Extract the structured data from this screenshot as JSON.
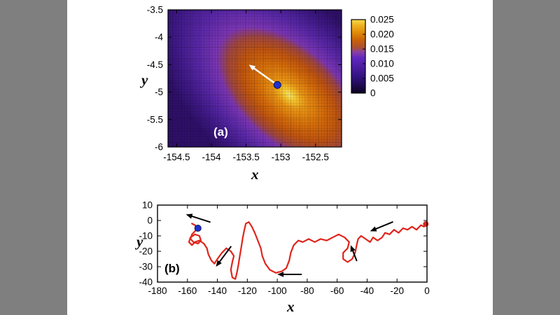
{
  "page": {
    "background": "#7f7f7f",
    "paper": "#ffffff"
  },
  "chart_data": [
    {
      "id": "panel-a",
      "type": "heatmap",
      "panel_label": "(a)",
      "xlabel": "x",
      "ylabel": "y",
      "xlim": [
        -154.625,
        -152.125
      ],
      "ylim": [
        -6,
        -3.5
      ],
      "xticks": {
        "values": [
          -154.5,
          -154,
          -153.5,
          -153,
          -152.5
        ],
        "labels": [
          "-154.5",
          "-154",
          "-153.5",
          "-153",
          "-152.5"
        ]
      },
      "yticks": {
        "values": [
          -3.5,
          -4,
          -4.5,
          -5,
          -5.5,
          -6
        ],
        "labels": [
          "-3.5",
          "-4",
          "-4.5",
          "-5",
          "-5.5",
          "-6"
        ]
      },
      "colorbar": {
        "min": 0,
        "max": 0.025,
        "tick_labels": [
          "0.025",
          "0.020",
          "0.015",
          "0.010",
          "0.005",
          "0"
        ],
        "palette_stops": [
          {
            "offset": 0,
            "color": "#0b0220"
          },
          {
            "offset": 0.1,
            "color": "#1e0a4e"
          },
          {
            "offset": 0.22,
            "color": "#32127f"
          },
          {
            "offset": 0.35,
            "color": "#4a1d9e"
          },
          {
            "offset": 0.48,
            "color": "#6128c0"
          },
          {
            "offset": 0.56,
            "color": "#8a41a0"
          },
          {
            "offset": 0.62,
            "color": "#aa4f30"
          },
          {
            "offset": 0.72,
            "color": "#c86208"
          },
          {
            "offset": 0.82,
            "color": "#e08908"
          },
          {
            "offset": 0.92,
            "color": "#eeb11e"
          },
          {
            "offset": 1,
            "color": "#f7dc4e"
          }
        ]
      },
      "hotspot": {
        "x": -152.88,
        "y": -5.05,
        "tilt_deg": 42,
        "aspect": 0.55,
        "gradient_stops": [
          {
            "offset": 0,
            "color": "#fbe96f"
          },
          {
            "offset": 0.05,
            "color": "#f6c52e"
          },
          {
            "offset": 0.12,
            "color": "#ea9414"
          },
          {
            "offset": 0.25,
            "color": "#d56c0a"
          },
          {
            "offset": 0.36,
            "color": "#bf5410"
          },
          {
            "offset": 0.46,
            "color": "#a04640"
          },
          {
            "offset": 0.54,
            "color": "#7c36b4"
          },
          {
            "offset": 0.68,
            "color": "#5a28a8"
          },
          {
            "offset": 0.85,
            "color": "#3f1987"
          },
          {
            "offset": 1,
            "color": "#2e1068"
          }
        ]
      },
      "marker": {
        "x": -153.05,
        "y": -4.87,
        "color": "#1d2fd6"
      },
      "arrow": {
        "x1": -153.05,
        "y1": -4.87,
        "x2": -153.46,
        "y2": -4.5,
        "color": "#ffffff"
      }
    },
    {
      "id": "panel-b",
      "type": "line",
      "panel_label": "(b)",
      "xlabel": "x",
      "ylabel": "y",
      "xlim": [
        -180,
        0
      ],
      "ylim": [
        -40,
        10
      ],
      "xticks": {
        "values": [
          -180,
          -160,
          -140,
          -120,
          -100,
          -80,
          -60,
          -40,
          -20,
          0
        ],
        "labels": [
          "-180",
          "-160",
          "-140",
          "-120",
          "-100",
          "-80",
          "-60",
          "-40",
          "-20",
          "0"
        ]
      },
      "yticks": {
        "values": [
          10,
          0,
          -10,
          -20,
          -30,
          -40
        ],
        "labels": [
          "10",
          "0",
          "-10",
          "-20",
          "-30",
          "-40"
        ]
      },
      "series": [
        {
          "name": "trajectory",
          "color": "#e0251c",
          "points": [
            [
              0,
              -2
            ],
            [
              -2,
              -4
            ],
            [
              -4,
              -3
            ],
            [
              -7,
              -6
            ],
            [
              -10,
              -4
            ],
            [
              -13,
              -6
            ],
            [
              -16,
              -5
            ],
            [
              -19,
              -8
            ],
            [
              -22,
              -6
            ],
            [
              -25,
              -9
            ],
            [
              -28,
              -8
            ],
            [
              -30,
              -11
            ],
            [
              -33,
              -13
            ],
            [
              -36,
              -11
            ],
            [
              -38,
              -14
            ],
            [
              -41,
              -12
            ],
            [
              -44,
              -10
            ],
            [
              -46,
              -12
            ],
            [
              -47,
              -16
            ],
            [
              -48,
              -21
            ],
            [
              -50,
              -25
            ],
            [
              -53,
              -27
            ],
            [
              -56,
              -25
            ],
            [
              -56,
              -21
            ],
            [
              -53,
              -18
            ],
            [
              -52,
              -14
            ],
            [
              -55,
              -11
            ],
            [
              -59,
              -9
            ],
            [
              -63,
              -11
            ],
            [
              -67,
              -13
            ],
            [
              -71,
              -12
            ],
            [
              -75,
              -14
            ],
            [
              -79,
              -12
            ],
            [
              -83,
              -14
            ],
            [
              -86,
              -13
            ],
            [
              -89,
              -16
            ],
            [
              -91,
              -21
            ],
            [
              -92,
              -26
            ],
            [
              -94,
              -31
            ],
            [
              -97,
              -33
            ],
            [
              -101,
              -34
            ],
            [
              -105,
              -32
            ],
            [
              -108,
              -28
            ],
            [
              -110,
              -23
            ],
            [
              -111,
              -18
            ],
            [
              -113,
              -13
            ],
            [
              -115,
              -8
            ],
            [
              -117,
              -4
            ],
            [
              -119,
              -1
            ],
            [
              -121,
              -2
            ],
            [
              -122,
              -6
            ],
            [
              -123,
              -11
            ],
            [
              -124,
              -17
            ],
            [
              -125,
              -23
            ],
            [
              -126,
              -29
            ],
            [
              -127,
              -34
            ],
            [
              -128,
              -38
            ],
            [
              -130,
              -37
            ],
            [
              -131,
              -32
            ],
            [
              -130,
              -27
            ],
            [
              -129,
              -23
            ],
            [
              -131,
              -20
            ],
            [
              -134,
              -18
            ],
            [
              -137,
              -21
            ],
            [
              -140,
              -25
            ],
            [
              -142,
              -28
            ],
            [
              -144,
              -26
            ],
            [
              -146,
              -22
            ],
            [
              -147,
              -18
            ],
            [
              -149,
              -15
            ],
            [
              -152,
              -13
            ],
            [
              -155,
              -14
            ],
            [
              -157,
              -16
            ],
            [
              -159,
              -14
            ],
            [
              -158,
              -11
            ],
            [
              -155,
              -9
            ],
            [
              -152,
              -10
            ],
            [
              -151,
              -13
            ],
            [
              -153,
              -15
            ],
            [
              -156,
              -14
            ],
            [
              -158,
              -12
            ],
            [
              -157,
              -9
            ],
            [
              -155,
              -7
            ],
            [
              -153,
              -5
            ],
            [
              -155,
              -3
            ],
            [
              -157,
              -2
            ]
          ]
        }
      ],
      "marker": {
        "x": -153,
        "y": -5,
        "color": "#1d2fd6"
      },
      "endpoint_marker": {
        "x": -0.8,
        "y": -2.3,
        "color": "#e0251c"
      },
      "arrow_color": "#000000",
      "arrows": [
        {
          "x1": -145,
          "y1": -1,
          "x2": -161,
          "y2": 4
        },
        {
          "x1": -131,
          "y1": -17,
          "x2": -141,
          "y2": -30
        },
        {
          "x1": -84,
          "y1": -35,
          "x2": -100,
          "y2": -35
        },
        {
          "x1": -47,
          "y1": -26,
          "x2": -51,
          "y2": -16
        },
        {
          "x1": -23,
          "y1": -1,
          "x2": -38,
          "y2": -7
        }
      ]
    }
  ]
}
